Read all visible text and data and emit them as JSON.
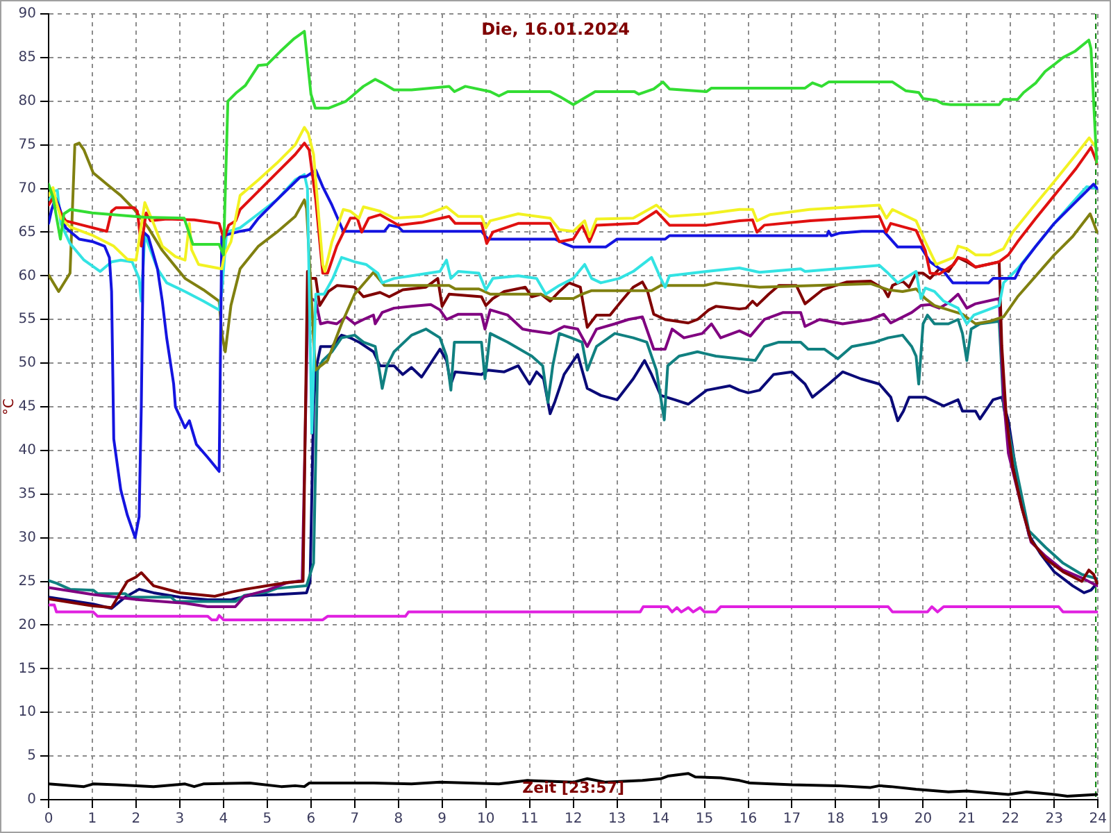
{
  "chart_data": {
    "type": "line",
    "title": "Die, 16.01.2024",
    "xlabel": "Zeit [23:57]",
    "ylabel": "°C",
    "xlim": [
      0,
      24
    ],
    "xticks": [
      0,
      1,
      2,
      3,
      4,
      5,
      6,
      7,
      8,
      9,
      10,
      11,
      12,
      13,
      14,
      15,
      16,
      17,
      18,
      19,
      20,
      21,
      22,
      23,
      24
    ],
    "ylim": [
      0,
      90
    ],
    "yticks": [
      0,
      5,
      10,
      15,
      20,
      25,
      30,
      35,
      40,
      45,
      50,
      55,
      60,
      65,
      70,
      75,
      80,
      85,
      90
    ],
    "grid": true,
    "ref_lines": [
      {
        "axis": "x",
        "value": 23.95,
        "color": "#008000",
        "line_style": "dashed"
      }
    ],
    "series": [
      {
        "color": "#33dd33",
        "x": [
          0,
          0.1,
          0.27,
          0.35,
          0.5,
          1,
          2.2,
          3.1,
          3.3,
          3.9,
          4.0,
          4.1,
          4.3,
          4.5,
          4.8,
          5.0,
          5.3,
          5.6,
          5.85,
          6.0,
          6.1,
          6.4,
          6.8,
          7.2,
          7.47,
          7.63,
          7.9,
          8.3,
          9.16,
          9.28,
          9.53,
          10.1,
          10.3,
          10.5,
          11.47,
          11.7,
          12.0,
          12.2,
          12.5,
          13.4,
          13.5,
          13.84,
          14.05,
          14.2,
          15.05,
          15.16,
          17.3,
          17.47,
          17.68,
          17.84,
          19.3,
          19.6,
          19.9,
          20.0,
          20.3,
          20.45,
          20.63,
          21.74,
          21.84,
          22.16,
          22.3,
          22.58,
          22.79,
          23.0,
          23.2,
          23.47,
          23.79,
          23.84,
          23.97
        ],
        "values": [
          70.5,
          69,
          64.2,
          67.1,
          67.6,
          67.2,
          66.7,
          66.6,
          63.6,
          63.6,
          62.4,
          80,
          81,
          81.8,
          84.1,
          84.2,
          85.7,
          87.1,
          88,
          80.8,
          79.2,
          79.2,
          80,
          81.7,
          82.5,
          82.1,
          81.3,
          81.3,
          81.7,
          81.1,
          81.7,
          81.1,
          80.6,
          81.1,
          81.1,
          80.5,
          79.6,
          80.2,
          81.1,
          81.1,
          80.8,
          81.4,
          82.2,
          81.4,
          81.1,
          81.5,
          81.5,
          82.1,
          81.7,
          82.2,
          82.2,
          81.2,
          81,
          80.3,
          80.1,
          79.7,
          79.6,
          79.6,
          80.2,
          80.2,
          81,
          82.1,
          83.4,
          84.2,
          85,
          85.7,
          87,
          86,
          73
        ]
      },
      {
        "color": "#f2f222",
        "x": [
          0,
          0.1,
          0.18,
          0.28,
          0.49,
          1.02,
          1.49,
          1.8,
          2.0,
          2.2,
          2.4,
          2.6,
          2.9,
          3.12,
          3.22,
          3.27,
          3.43,
          3.85,
          3.96,
          4.02,
          4.17,
          4.38,
          4.8,
          5.22,
          5.64,
          5.85,
          5.94,
          6.06,
          6.27,
          6.32,
          6.48,
          6.74,
          6.9,
          7.1,
          7.2,
          7.58,
          7.9,
          8.53,
          9.1,
          9.37,
          9.9,
          10.0,
          10.1,
          10.74,
          11.47,
          11.68,
          12.0,
          12.26,
          12.37,
          12.53,
          13.37,
          13.9,
          14.2,
          15.05,
          15.8,
          16.1,
          16.2,
          16.5,
          17.4,
          19.0,
          19.16,
          19.3,
          19.84,
          20.05,
          20.3,
          20.7,
          20.8,
          21.0,
          21.2,
          21.53,
          21.84,
          22.05,
          22.47,
          23.0,
          23.5,
          23.8,
          23.95
        ],
        "values": [
          69.2,
          70.1,
          68.4,
          66.6,
          65.6,
          64.6,
          63.4,
          61.9,
          61.8,
          68.4,
          66.0,
          63.4,
          62.2,
          61.8,
          66.0,
          63.0,
          61.3,
          60.9,
          60.8,
          62.4,
          63.9,
          69.2,
          71.0,
          72.9,
          75.0,
          77.0,
          76.3,
          73.9,
          61.3,
          60.5,
          63.9,
          67.6,
          67.4,
          66.6,
          67.9,
          67.4,
          66.6,
          66.8,
          67.9,
          66.8,
          66.8,
          65.5,
          66.3,
          67.1,
          66.6,
          65.3,
          65.1,
          66.3,
          64.5,
          66.5,
          66.6,
          68.1,
          66.8,
          67.1,
          67.6,
          67.6,
          66.3,
          67.0,
          67.6,
          68.1,
          66.6,
          67.6,
          66.3,
          63.9,
          61.3,
          62.1,
          63.4,
          63.1,
          62.4,
          62.4,
          63.1,
          65.0,
          67.6,
          70.8,
          73.9,
          75.8,
          74.7
        ]
      },
      {
        "color": "#e01010",
        "x": [
          0,
          0.12,
          0.23,
          0.39,
          0.7,
          1.33,
          1.44,
          1.54,
          1.96,
          2.03,
          2.12,
          2.23,
          2.33,
          2.7,
          3.33,
          3.9,
          4.01,
          4.12,
          4.28,
          4.38,
          4.7,
          5.22,
          5.64,
          5.85,
          5.96,
          6.11,
          6.27,
          6.38,
          6.59,
          6.9,
          7.06,
          7.16,
          7.32,
          7.58,
          8.0,
          8.53,
          9.16,
          9.3,
          9.9,
          10.02,
          10.16,
          10.74,
          11.47,
          11.68,
          12.0,
          12.2,
          12.37,
          12.53,
          13.47,
          13.9,
          14.2,
          15.05,
          15.8,
          16.1,
          16.2,
          16.37,
          17.42,
          19.0,
          19.16,
          19.26,
          19.84,
          20.05,
          20.16,
          20.37,
          20.7,
          20.8,
          21.0,
          21.2,
          21.74,
          21.95,
          22.16,
          22.58,
          23.0,
          23.5,
          23.84,
          23.98
        ],
        "values": [
          68.1,
          69.1,
          67.6,
          66.3,
          65.9,
          65.1,
          67.4,
          67.8,
          67.8,
          67.4,
          63.4,
          67.2,
          66.3,
          66.5,
          66.4,
          66.0,
          64.2,
          65.8,
          66.3,
          67.6,
          69.2,
          71.8,
          73.9,
          75.2,
          74.4,
          68.7,
          60.3,
          60.3,
          63.4,
          66.6,
          66.6,
          65.0,
          66.6,
          67.0,
          65.8,
          66.1,
          66.8,
          66.0,
          66.0,
          63.7,
          65.0,
          66.0,
          66.0,
          63.9,
          64.2,
          65.8,
          63.9,
          65.8,
          66.0,
          67.4,
          65.8,
          65.8,
          66.3,
          66.4,
          65.0,
          65.8,
          66.3,
          66.8,
          65.0,
          66.0,
          65.2,
          62.9,
          60.3,
          60.2,
          61.3,
          62.1,
          61.8,
          61.0,
          61.6,
          62.4,
          63.9,
          66.6,
          69.2,
          72.3,
          74.7,
          72.9
        ]
      },
      {
        "color": "#1414e0",
        "x": [
          0,
          0.07,
          0.16,
          0.23,
          0.39,
          0.7,
          1.02,
          1.28,
          1.39,
          1.44,
          1.49,
          1.65,
          1.8,
          1.98,
          2.07,
          2.12,
          2.17,
          2.28,
          2.49,
          2.6,
          2.7,
          2.86,
          2.9,
          3.12,
          3.22,
          3.38,
          3.64,
          3.9,
          3.96,
          4.07,
          4.38,
          4.6,
          4.8,
          5.22,
          5.75,
          5.9,
          6.11,
          6.27,
          6.48,
          6.74,
          7.68,
          7.79,
          8.0,
          8.1,
          9.9,
          10.05,
          11.58,
          11.79,
          12.0,
          12.74,
          13.0,
          14.1,
          14.2,
          17.8,
          17.84,
          17.9,
          18.1,
          18.6,
          19.1,
          19.42,
          19.95,
          20.16,
          20.47,
          20.68,
          21.5,
          21.6,
          22.1,
          22.26,
          22.58,
          23.0,
          23.42,
          23.74,
          23.9,
          23.98
        ],
        "values": [
          66.0,
          67.6,
          68.9,
          68.1,
          65.5,
          64.2,
          63.9,
          63.4,
          62.1,
          58.2,
          41.3,
          35.5,
          32.6,
          30.0,
          32.4,
          45.0,
          65.0,
          64.5,
          60.8,
          57.1,
          52.9,
          47.6,
          45.0,
          42.6,
          43.4,
          40.7,
          39.2,
          37.6,
          64.5,
          64.7,
          65.1,
          65.3,
          66.6,
          68.7,
          71.3,
          71.4,
          72.1,
          70.2,
          68.1,
          65.1,
          65.1,
          65.8,
          65.6,
          65.1,
          65.1,
          64.2,
          64.2,
          63.7,
          63.3,
          63.3,
          64.2,
          64.2,
          64.6,
          64.6,
          65.1,
          64.6,
          64.9,
          65.1,
          65.1,
          63.3,
          63.3,
          61.6,
          60.5,
          59.2,
          59.2,
          59.7,
          59.7,
          61.3,
          63.4,
          66.0,
          68.1,
          69.7,
          70.5,
          70.0
        ]
      },
      {
        "color": "#33e3e3",
        "x": [
          0.02,
          0.12,
          0.2,
          0.28,
          0.49,
          0.81,
          1.18,
          1.44,
          1.65,
          1.91,
          2.07,
          2.12,
          2.2,
          2.49,
          2.7,
          3.12,
          3.54,
          3.9,
          3.96,
          4.07,
          4.38,
          4.8,
          5.22,
          5.64,
          5.85,
          5.92,
          6.02,
          6.11,
          6.3,
          6.5,
          6.7,
          7.0,
          7.26,
          7.53,
          7.63,
          7.9,
          8.3,
          8.95,
          9.1,
          9.2,
          9.37,
          9.84,
          10.0,
          10.16,
          10.74,
          11.16,
          11.37,
          11.68,
          12.0,
          12.26,
          12.42,
          12.63,
          13.05,
          13.37,
          13.79,
          14.0,
          14.1,
          14.2,
          15.05,
          15.8,
          16.26,
          17.2,
          17.3,
          19.0,
          19.2,
          19.42,
          19.84,
          19.95,
          20.05,
          20.26,
          20.47,
          20.8,
          21.0,
          21.16,
          21.74,
          21.84,
          22.16,
          22.58,
          23.0,
          23.42,
          23.74,
          23.98
        ],
        "values": [
          68.7,
          69.7,
          69.8,
          66.0,
          63.7,
          61.8,
          60.5,
          61.6,
          61.8,
          61.6,
          59.7,
          57.1,
          64.7,
          60.8,
          59.2,
          58.2,
          57.1,
          56.1,
          58.2,
          65.0,
          65.5,
          67.1,
          68.7,
          71.0,
          71.6,
          70,
          42,
          57.9,
          57.9,
          59.7,
          62.1,
          61.6,
          61.3,
          60.3,
          59.2,
          59.7,
          60.0,
          60.5,
          61.8,
          59.7,
          60.5,
          60.3,
          58.4,
          59.7,
          60.0,
          59.7,
          57.9,
          58.9,
          59.7,
          61.3,
          59.7,
          59.2,
          59.7,
          60.5,
          62.1,
          59.7,
          58.7,
          60.0,
          60.5,
          60.9,
          60.4,
          60.8,
          60.5,
          61.2,
          60.3,
          59.2,
          60.5,
          57.4,
          58.6,
          58.2,
          57.1,
          56.3,
          54.5,
          55.5,
          56.6,
          59.2,
          60.8,
          63.4,
          66.0,
          68.4,
          70.2,
          70.0
        ]
      },
      {
        "color": "#808010",
        "x": [
          0,
          0.23,
          0.49,
          0.6,
          0.7,
          0.81,
          1.02,
          1.33,
          1.65,
          1.96,
          2.28,
          2.6,
          3.12,
          3.54,
          3.9,
          3.96,
          4.04,
          4.17,
          4.38,
          4.8,
          5.22,
          5.64,
          5.85,
          5.9,
          6.1,
          6.38,
          6.7,
          7.0,
          7.43,
          7.58,
          7.68,
          9.16,
          9.3,
          9.84,
          10.1,
          11.26,
          11.47,
          12.0,
          12.2,
          12.42,
          13.79,
          14.0,
          15.0,
          15.26,
          16.26,
          18.8,
          19.2,
          19.53,
          19.84,
          20.05,
          20.26,
          20.58,
          20.9,
          21.2,
          21.53,
          21.84,
          22.16,
          22.58,
          23.0,
          23.42,
          23.82,
          23.98
        ],
        "values": [
          60.1,
          58.2,
          60.3,
          75.0,
          75.2,
          74.4,
          71.8,
          70.5,
          69.2,
          67.6,
          65.5,
          62.9,
          59.7,
          58.4,
          57.1,
          53.4,
          51.3,
          56.6,
          60.8,
          63.4,
          65.0,
          66.8,
          68.7,
          67.7,
          49.2,
          50.3,
          54.5,
          57.9,
          60.4,
          59.5,
          58.9,
          58.9,
          58.5,
          58.5,
          57.9,
          57.9,
          57.4,
          57.4,
          57.9,
          58.3,
          58.3,
          58.9,
          58.9,
          59.2,
          58.7,
          59.1,
          58.4,
          58.2,
          58.5,
          57.4,
          56.6,
          56.1,
          55.6,
          54.5,
          54.8,
          55.3,
          57.6,
          60.0,
          62.4,
          64.5,
          67.1,
          65.0
        ]
      },
      {
        "color": "#800000",
        "x": [
          0,
          0.5,
          1.0,
          1.44,
          1.8,
          2.0,
          2.12,
          2.4,
          3.0,
          3.6,
          3.8,
          4.2,
          4.5,
          5.0,
          5.5,
          5.82,
          5.92,
          6.0,
          6.11,
          6.2,
          6.4,
          6.6,
          7.0,
          7.2,
          7.58,
          7.79,
          8.1,
          8.63,
          8.9,
          9.0,
          9.16,
          9.9,
          10.0,
          10.16,
          10.42,
          10.9,
          11.05,
          11.26,
          11.47,
          11.68,
          11.9,
          12.16,
          12.32,
          12.53,
          12.84,
          13.1,
          13.37,
          13.58,
          13.7,
          13.84,
          14.1,
          14.63,
          14.84,
          15.1,
          15.26,
          15.8,
          15.95,
          16.1,
          16.2,
          16.47,
          16.7,
          17.1,
          17.3,
          17.7,
          18.26,
          18.8,
          19.1,
          19.2,
          19.3,
          19.53,
          19.68,
          19.84,
          20.0,
          20.16,
          20.37,
          20.58,
          20.8,
          21.0,
          21.2,
          21.74,
          21.8,
          21.9,
          22.05,
          22.26,
          22.47,
          22.8,
          23.2,
          23.63,
          23.79,
          23.9,
          23.98
        ],
        "values": [
          23.0,
          22.6,
          22.2,
          22.0,
          25.0,
          25.5,
          26.0,
          24.5,
          23.7,
          23.4,
          23.3,
          23.8,
          24.1,
          24.5,
          24.9,
          25.0,
          60.5,
          59.7,
          59.7,
          56.6,
          58.2,
          58.9,
          58.7,
          57.6,
          58.1,
          57.6,
          58.4,
          58.7,
          59.7,
          56.5,
          57.9,
          57.6,
          56.6,
          57.4,
          58.2,
          58.7,
          57.6,
          57.9,
          57.1,
          58.2,
          59.2,
          58.7,
          54.1,
          55.5,
          55.5,
          57.1,
          58.7,
          59.3,
          58.2,
          55.6,
          55.0,
          54.6,
          55.0,
          56.1,
          56.5,
          56.2,
          56.3,
          57.1,
          56.6,
          57.9,
          58.9,
          58.9,
          56.8,
          58.4,
          59.3,
          59.4,
          58.5,
          57.6,
          58.9,
          59.4,
          58.7,
          60.3,
          60.3,
          59.7,
          60.8,
          60.5,
          62.1,
          61.6,
          61.0,
          61.6,
          52,
          44,
          38.1,
          33.4,
          29.7,
          27.6,
          26.1,
          25.0,
          26.3,
          25.8,
          24.8
        ]
      },
      {
        "color": "#800080",
        "x": [
          0,
          1.02,
          2.07,
          3.12,
          3.64,
          4.27,
          4.48,
          5.0,
          5.43,
          5.8,
          5.93,
          6.0,
          6.11,
          6.22,
          6.38,
          6.59,
          6.8,
          7.0,
          7.2,
          7.43,
          7.47,
          7.63,
          7.9,
          8.3,
          8.74,
          8.95,
          9.1,
          9.37,
          9.9,
          9.98,
          10.1,
          10.5,
          10.84,
          11.05,
          11.47,
          11.79,
          12.1,
          12.32,
          12.53,
          12.95,
          13.26,
          13.58,
          13.84,
          14.1,
          14.26,
          14.53,
          14.95,
          15.16,
          15.37,
          15.8,
          16.05,
          16.37,
          16.8,
          17.2,
          17.3,
          17.63,
          18.16,
          18.8,
          19.1,
          19.26,
          19.74,
          19.95,
          20.16,
          20.37,
          20.58,
          20.8,
          21.0,
          21.2,
          21.74,
          21.84,
          21.95,
          22.26,
          22.47,
          22.8,
          23.2,
          23.63,
          23.98
        ],
        "values": [
          24.3,
          23.5,
          22.9,
          22.5,
          22.1,
          22.1,
          23.3,
          24.0,
          24.8,
          25.1,
          57.1,
          57.4,
          57.1,
          54.5,
          54.7,
          54.5,
          55.3,
          54.5,
          55.0,
          55.5,
          54.5,
          55.8,
          56.3,
          56.5,
          56.7,
          56.1,
          55.0,
          55.6,
          55.6,
          53.9,
          56.1,
          55.5,
          53.9,
          53.7,
          53.4,
          54.2,
          53.9,
          51.9,
          53.9,
          54.5,
          55.0,
          55.3,
          51.6,
          51.6,
          53.9,
          52.9,
          53.4,
          54.5,
          52.9,
          53.7,
          53.1,
          55.0,
          55.8,
          55.8,
          54.2,
          55.0,
          54.5,
          55.0,
          55.6,
          54.6,
          55.8,
          56.6,
          56.7,
          56.3,
          56.9,
          57.9,
          56.3,
          56.8,
          57.4,
          46.0,
          39.7,
          33.4,
          29.5,
          27.9,
          26.3,
          25.4,
          24.5
        ]
      },
      {
        "color": "#108080",
        "x": [
          0,
          0.18,
          0.49,
          1.02,
          1.12,
          1.75,
          1.86,
          2.8,
          2.91,
          4.27,
          4.48,
          5.0,
          5.22,
          5.9,
          6.06,
          6.15,
          6.27,
          6.48,
          6.7,
          7.0,
          7.2,
          7.47,
          7.58,
          7.63,
          7.74,
          7.9,
          8.3,
          8.63,
          8.95,
          9.1,
          9.2,
          9.28,
          9.9,
          9.98,
          10.1,
          10.5,
          11.05,
          11.3,
          11.42,
          11.53,
          11.68,
          11.95,
          12.2,
          12.32,
          12.53,
          12.95,
          13.37,
          13.68,
          13.9,
          14.08,
          14.16,
          14.42,
          14.84,
          15.26,
          15.8,
          16.16,
          16.37,
          16.7,
          17.2,
          17.37,
          17.74,
          18.05,
          18.37,
          18.9,
          19.2,
          19.53,
          19.74,
          19.84,
          19.9,
          20.0,
          20.1,
          20.26,
          20.58,
          20.8,
          20.9,
          21.0,
          21.1,
          21.3,
          21.74,
          21.84,
          21.95,
          22.16,
          22.42,
          22.8,
          23.2,
          23.63,
          23.98
        ],
        "values": [
          25.1,
          24.8,
          24.1,
          24.0,
          23.6,
          23.6,
          23.2,
          23.2,
          22.7,
          22.7,
          23.4,
          23.8,
          24.2,
          24.5,
          27.1,
          49.2,
          50.3,
          51.3,
          52.9,
          53.2,
          52.4,
          51.9,
          48.7,
          47.1,
          49.7,
          51.3,
          53.2,
          53.9,
          52.9,
          50.8,
          46.9,
          52.4,
          52.4,
          48.2,
          53.4,
          52.4,
          50.8,
          49.7,
          45.5,
          49.7,
          53.4,
          52.9,
          52.4,
          49.2,
          51.9,
          53.4,
          52.9,
          52.4,
          49.2,
          43.5,
          49.7,
          50.8,
          51.3,
          50.8,
          50.5,
          50.3,
          51.9,
          52.4,
          52.4,
          51.6,
          51.6,
          50.5,
          51.9,
          52.4,
          52.9,
          53.2,
          51.9,
          50.8,
          47.6,
          54.5,
          55.5,
          54.5,
          54.5,
          55.0,
          53.4,
          50.3,
          53.9,
          54.5,
          54.8,
          45.0,
          42.3,
          37.1,
          30.8,
          28.9,
          27.1,
          25.8,
          25.3
        ]
      },
      {
        "color": "#0a0a78",
        "x": [
          0,
          1.02,
          1.44,
          1.75,
          2.07,
          2.4,
          3.0,
          3.64,
          4.17,
          4.6,
          5.22,
          5.9,
          5.98,
          6.06,
          6.11,
          6.22,
          6.48,
          6.7,
          6.9,
          7.1,
          7.43,
          7.58,
          7.9,
          8.1,
          8.3,
          8.53,
          8.95,
          9.1,
          9.2,
          9.3,
          9.9,
          10.05,
          10.42,
          10.74,
          11.0,
          11.16,
          11.32,
          11.47,
          11.58,
          11.79,
          12.1,
          12.32,
          12.63,
          13.0,
          13.37,
          13.63,
          13.79,
          14.0,
          14.32,
          14.63,
          15.05,
          15.58,
          15.8,
          16.0,
          16.26,
          16.58,
          17.0,
          17.3,
          17.47,
          17.84,
          18.16,
          18.58,
          19.0,
          19.26,
          19.42,
          19.55,
          19.68,
          20.05,
          20.47,
          20.8,
          20.9,
          21.2,
          21.3,
          21.6,
          21.8,
          21.95,
          22.16,
          22.42,
          22.68,
          23.0,
          23.42,
          23.68,
          23.84,
          23.98
        ],
        "values": [
          23.2,
          22.4,
          21.9,
          23.2,
          24.1,
          23.7,
          23.2,
          22.9,
          22.9,
          23.4,
          23.5,
          23.7,
          25.0,
          45.0,
          49.2,
          51.9,
          51.9,
          53.2,
          52.9,
          52.4,
          51.3,
          49.7,
          49.7,
          48.7,
          49.5,
          48.4,
          51.6,
          50.3,
          47.6,
          49.0,
          48.7,
          49.2,
          49.0,
          49.7,
          47.6,
          49.0,
          48.2,
          44.2,
          45.6,
          48.7,
          51.0,
          47.1,
          46.3,
          45.8,
          48.2,
          50.3,
          48.7,
          46.3,
          45.8,
          45.3,
          46.9,
          47.4,
          46.9,
          46.6,
          46.9,
          48.7,
          49.0,
          47.6,
          46.1,
          47.6,
          49.0,
          48.2,
          47.6,
          46.1,
          43.4,
          44.5,
          46.1,
          46.1,
          45.1,
          45.8,
          44.5,
          44.5,
          43.6,
          45.8,
          46.1,
          43.4,
          36.5,
          30.3,
          28.2,
          26.1,
          24.5,
          23.7,
          24.0,
          24.8
        ]
      },
      {
        "color": "#e020e0",
        "x": [
          0,
          0.13,
          0.18,
          1.02,
          1.12,
          3.64,
          3.73,
          3.85,
          3.9,
          4.0,
          6.27,
          6.38,
          8.16,
          8.23,
          13.53,
          13.6,
          14.16,
          14.26,
          14.37,
          14.47,
          14.63,
          14.74,
          14.9,
          15.0,
          15.26,
          15.37,
          19.2,
          19.3,
          20.1,
          20.2,
          20.33,
          20.47,
          23.1,
          23.2,
          23.98
        ],
        "values": [
          22.3,
          22.3,
          21.5,
          21.5,
          21.0,
          21.0,
          20.6,
          20.6,
          21.1,
          20.6,
          20.6,
          21.0,
          21.0,
          21.5,
          21.5,
          22.1,
          22.1,
          21.5,
          22.0,
          21.5,
          22.0,
          21.5,
          22.0,
          21.5,
          21.5,
          22.1,
          22.1,
          21.5,
          21.5,
          22.1,
          21.5,
          22.1,
          22.1,
          21.5,
          21.5
        ]
      },
      {
        "color": "#000000",
        "x": [
          0,
          0.81,
          1.02,
          1.54,
          2.4,
          3.12,
          3.33,
          3.54,
          4.6,
          5.32,
          5.64,
          5.85,
          5.96,
          7.43,
          8.3,
          8.95,
          10.3,
          10.95,
          12.0,
          12.32,
          12.74,
          13.58,
          14.0,
          14.16,
          14.63,
          14.79,
          15.37,
          15.8,
          16.05,
          17.0,
          18.05,
          18.8,
          19.0,
          19.26,
          19.84,
          20.58,
          21.0,
          21.95,
          22.37,
          23.0,
          23.3,
          23.98
        ],
        "values": [
          1.8,
          1.5,
          1.8,
          1.7,
          1.5,
          1.8,
          1.5,
          1.8,
          1.9,
          1.5,
          1.6,
          1.5,
          1.9,
          1.9,
          1.8,
          2.0,
          1.8,
          2.2,
          2.0,
          2.4,
          2.0,
          2.2,
          2.4,
          2.7,
          3.0,
          2.6,
          2.5,
          2.2,
          1.9,
          1.7,
          1.6,
          1.4,
          1.6,
          1.5,
          1.2,
          0.9,
          1.0,
          0.6,
          0.9,
          0.6,
          0.4,
          0.6
        ]
      }
    ]
  }
}
